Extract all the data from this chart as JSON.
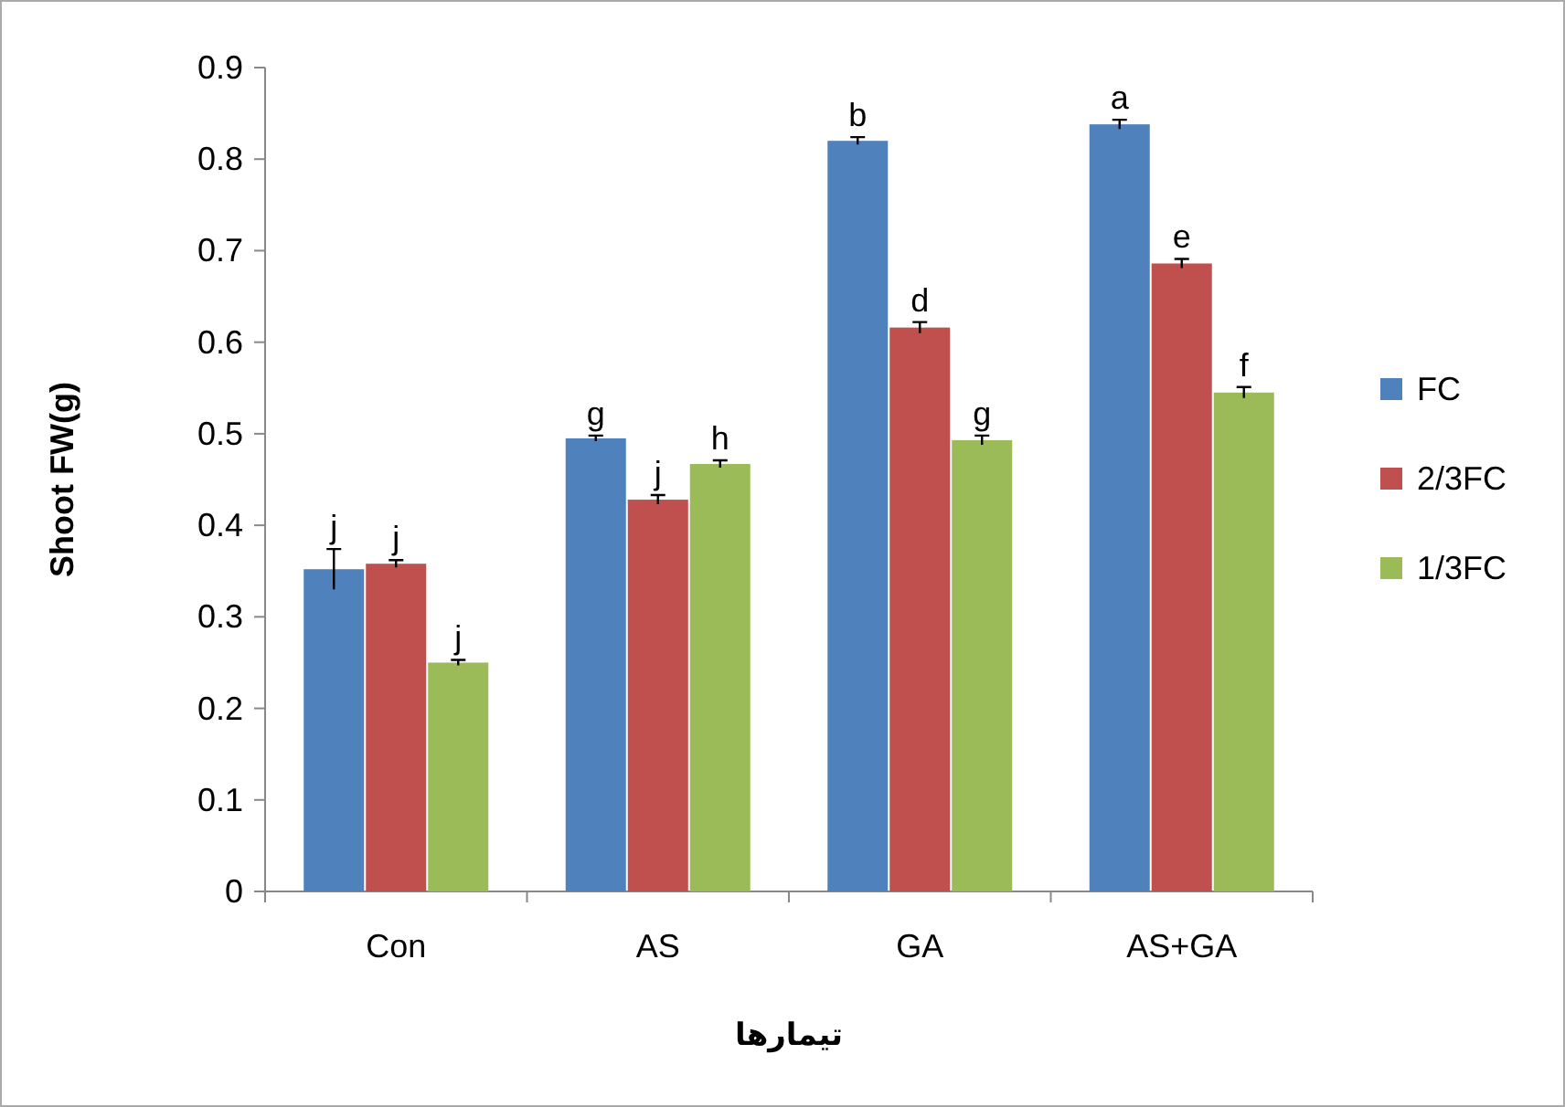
{
  "chart_data": {
    "type": "bar",
    "xlabel": "تیمارها",
    "ylabel": "Shoot FW(g)",
    "categories": [
      "Con",
      "AS",
      "GA",
      "AS+GA"
    ],
    "series": [
      {
        "name": "FC",
        "color": "#4f81bd",
        "values": [
          0.352,
          0.495,
          0.82,
          0.838
        ],
        "errors": [
          0.022,
          0.003,
          0.004,
          0.005
        ]
      },
      {
        "name": "2/3FC",
        "color": "#c0504d",
        "values": [
          0.358,
          0.428,
          0.616,
          0.686
        ],
        "errors": [
          0.004,
          0.005,
          0.006,
          0.005
        ]
      },
      {
        "name": "1/3FC",
        "color": "#9bbb59",
        "values": [
          0.25,
          0.467,
          0.493,
          0.545
        ],
        "errors": [
          0.003,
          0.004,
          0.005,
          0.006
        ]
      }
    ],
    "ylim": [
      0,
      0.9
    ],
    "yticks": [
      0,
      0.1,
      0.2,
      0.3,
      0.4,
      0.5,
      0.6,
      0.7,
      0.8,
      0.9
    ],
    "legend": "right",
    "grid": false,
    "annotations": [
      "j",
      "j",
      "j",
      "g",
      "j",
      "h",
      "b",
      "d",
      "g",
      "a",
      "e",
      "f"
    ]
  }
}
